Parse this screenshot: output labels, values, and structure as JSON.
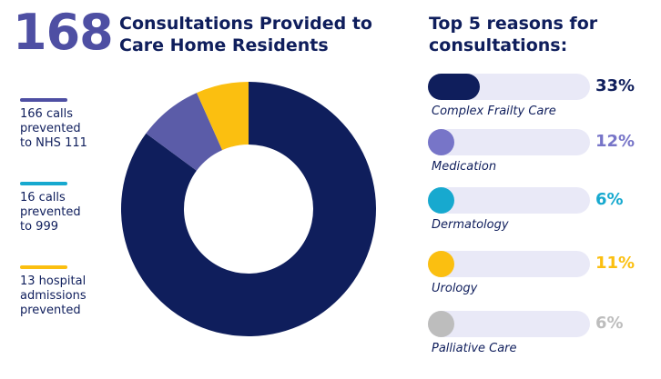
{
  "headline": {
    "number": "168",
    "title_line1": "Consultations Provided to",
    "title_line2": "Care Home Residents"
  },
  "legend": [
    {
      "line1": "166 calls",
      "line2": "prevented",
      "line3": "to NHS 111",
      "color": "#4e4fa3"
    },
    {
      "line1": "16 calls",
      "line2": "prevented",
      "line3": "to 999",
      "color": "#17a9cf"
    },
    {
      "line1": "13 hospital",
      "line2": "admissions",
      "line3": "prevented",
      "color": "#fbbf10"
    }
  ],
  "reasons_title": {
    "line1": "Top 5 reasons for",
    "line2": "consultations:"
  },
  "reasons": [
    {
      "label": "Complex Frailty Care",
      "pct_text": "33%",
      "fill": 0.33,
      "color": "#0f1e5c"
    },
    {
      "label": "Medication",
      "pct_text": "12%",
      "fill": 0.12,
      "color": "#7775c8"
    },
    {
      "label": "Dermatology",
      "pct_text": "6%",
      "fill": 0.06,
      "color": "#17a9cf"
    },
    {
      "label": "Urology",
      "pct_text": "11%",
      "fill": 0.11,
      "color": "#fbbf10"
    },
    {
      "label": "Palliative Care",
      "pct_text": "6%",
      "fill": 0.06,
      "color": "#bdbdbd"
    }
  ],
  "chart_data": {
    "type": "pie",
    "donut": true,
    "categories": [
      "166 calls prevented to NHS 111",
      "16 calls prevented to 999",
      "13 hospital admissions prevented"
    ],
    "values": [
      166,
      16,
      13
    ],
    "colors": [
      "#0f1e5c",
      "#5b5ca8",
      "#fbbf10"
    ]
  }
}
